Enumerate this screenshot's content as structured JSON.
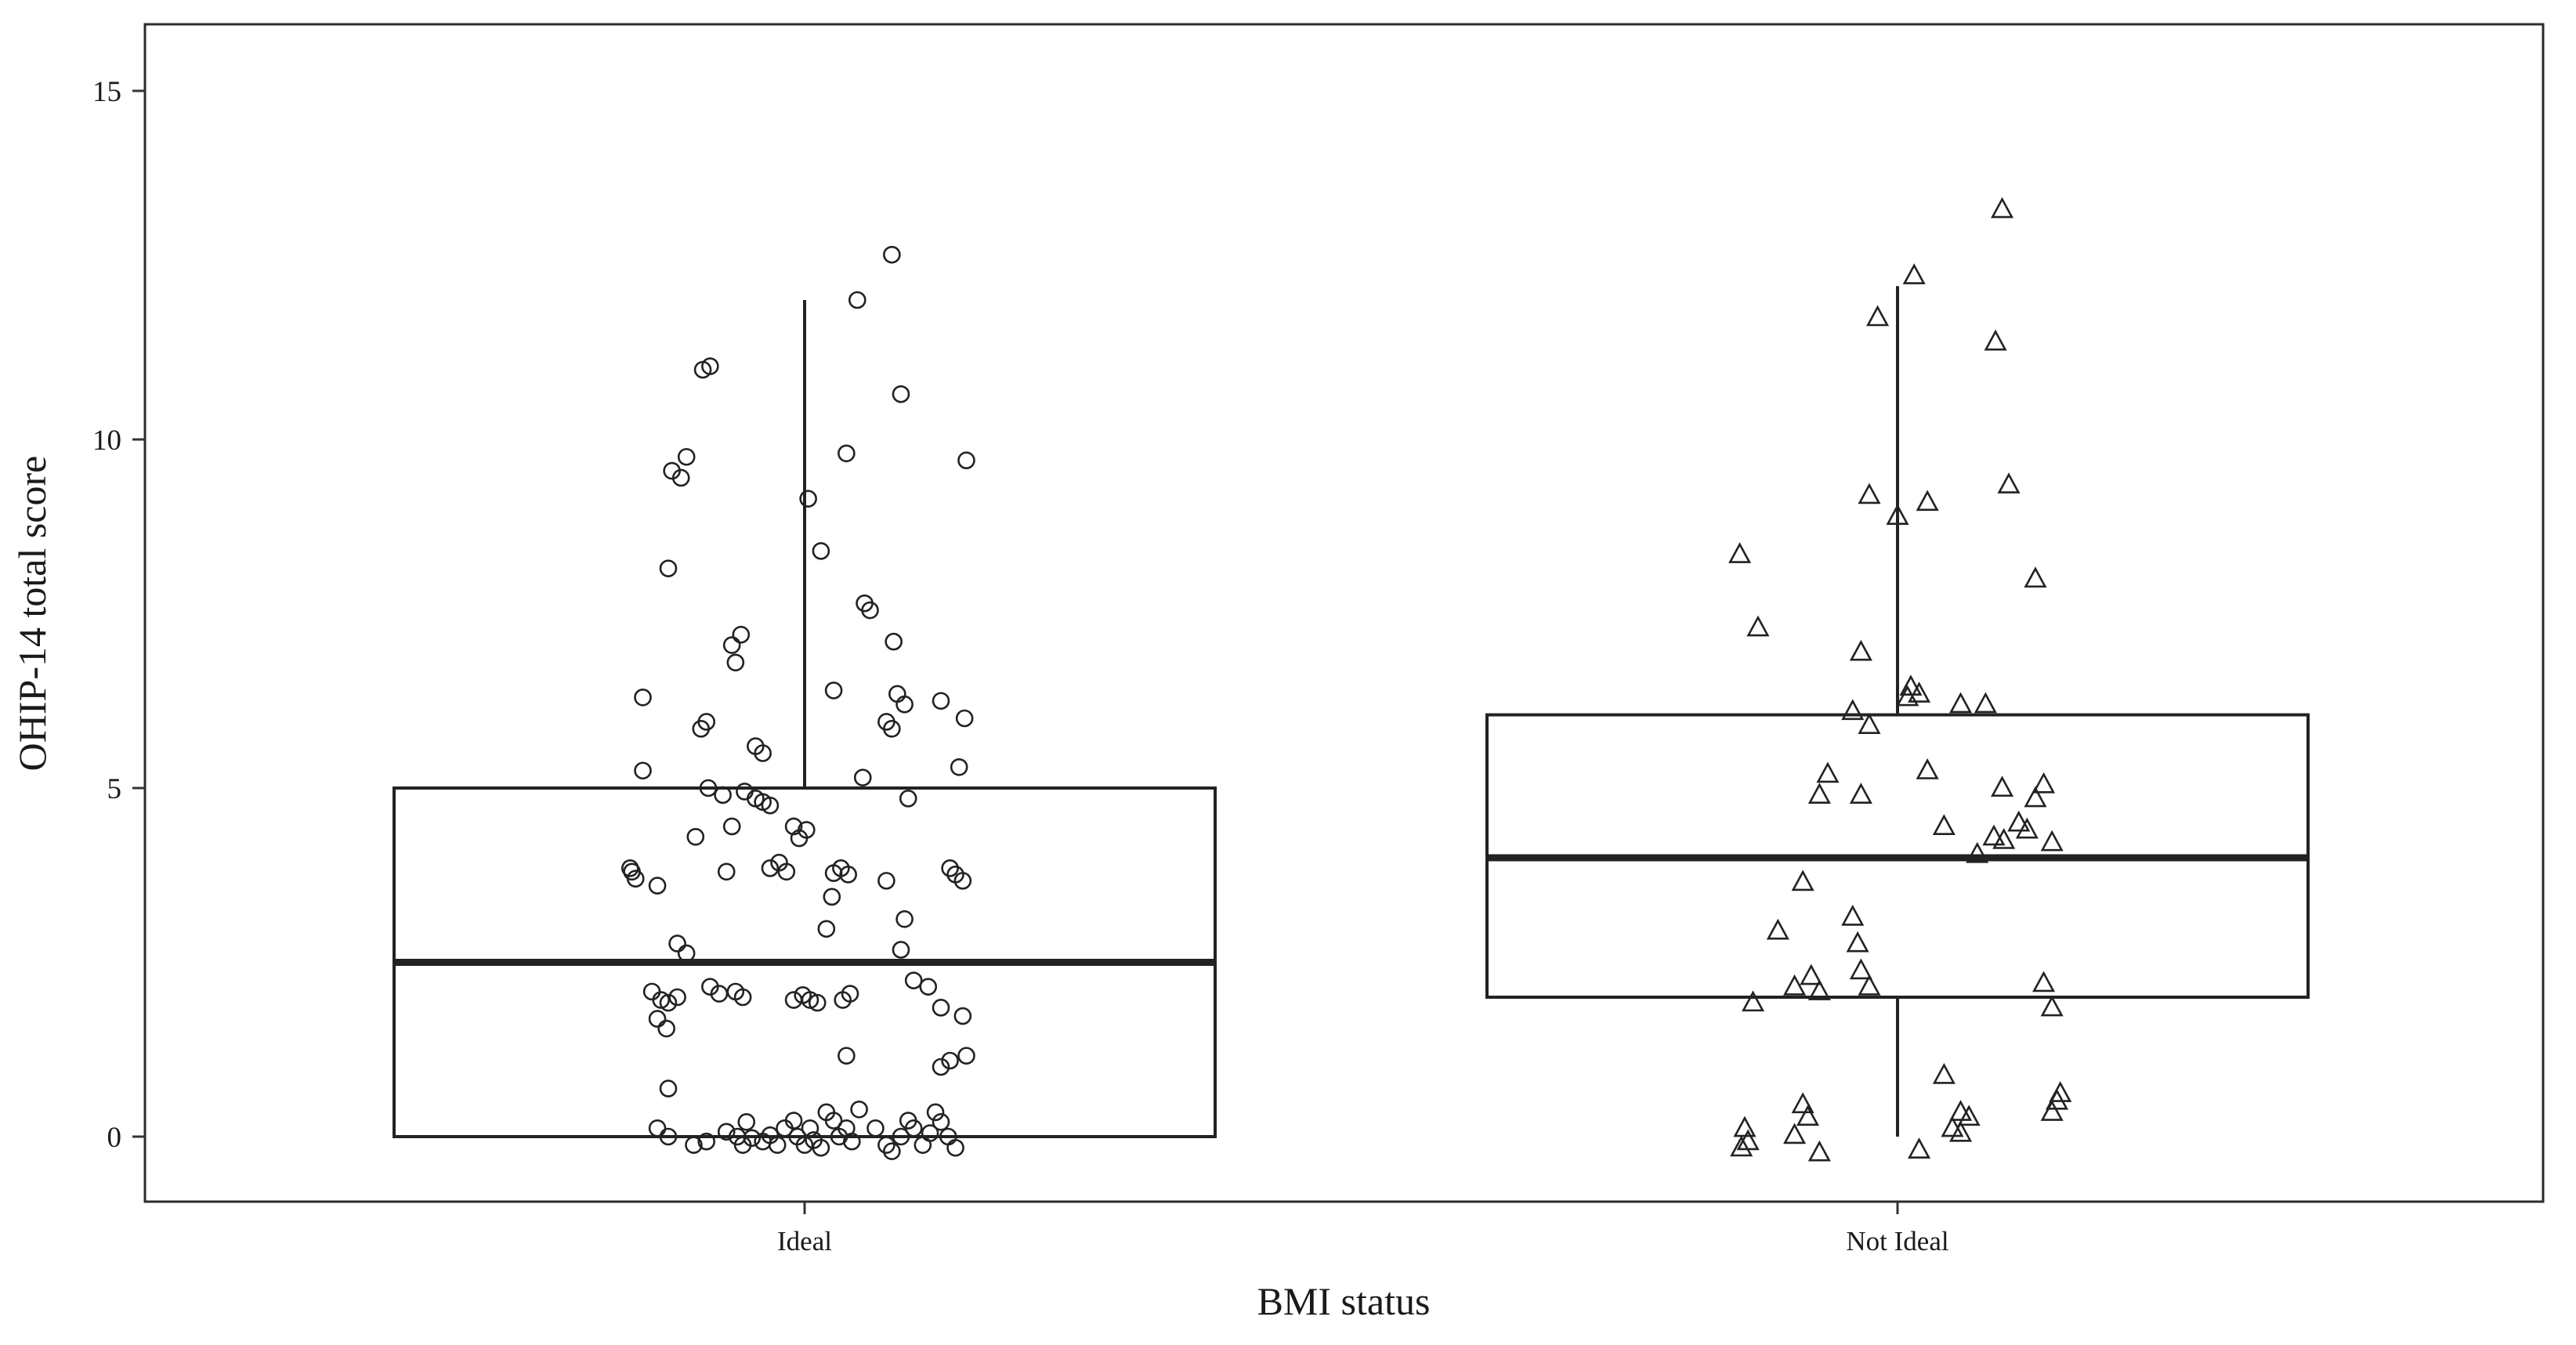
{
  "figure": {
    "background": "#ffffff"
  },
  "chart_data": {
    "type": "boxplot",
    "title": "",
    "xlabel": "BMI status",
    "ylabel": "OHIP-14 total score",
    "ylim": [
      -1,
      16
    ],
    "yticks": [
      0,
      5,
      10,
      15
    ],
    "categories": [
      "Ideal",
      "Not Ideal"
    ],
    "grid": false,
    "legend": "none",
    "colors": {
      "stroke": "#222222",
      "panel_border": "#2b2b2b",
      "background": "#ffffff"
    },
    "boxes": [
      {
        "category": "Ideal",
        "marker": "circle",
        "q1": 0,
        "median": 2.5,
        "q3": 5,
        "whisker_low": 0,
        "whisker_high": 12
      },
      {
        "category": "Not Ideal",
        "marker": "triangle",
        "q1": 2,
        "median": 4,
        "q3": 6.05,
        "whisker_low": 0,
        "whisker_high": 12.2
      }
    ],
    "points": {
      "Ideal": [
        [
          0.48,
          12.65
        ],
        [
          0.29,
          12.0
        ],
        [
          -0.52,
          11.05
        ],
        [
          -0.56,
          11.0
        ],
        [
          0.53,
          10.65
        ],
        [
          0.23,
          9.8
        ],
        [
          -0.65,
          9.75
        ],
        [
          0.89,
          9.7
        ],
        [
          -0.73,
          9.55
        ],
        [
          -0.68,
          9.45
        ],
        [
          0.02,
          9.15
        ],
        [
          0.09,
          8.4
        ],
        [
          -0.75,
          8.15
        ],
        [
          0.33,
          7.65
        ],
        [
          0.36,
          7.55
        ],
        [
          -0.35,
          7.2
        ],
        [
          0.49,
          7.1
        ],
        [
          -0.4,
          7.05
        ],
        [
          -0.38,
          6.8
        ],
        [
          0.16,
          6.4
        ],
        [
          0.51,
          6.35
        ],
        [
          -0.89,
          6.3
        ],
        [
          0.75,
          6.25
        ],
        [
          0.55,
          6.2
        ],
        [
          0.88,
          6.0
        ],
        [
          0.45,
          5.95
        ],
        [
          -0.54,
          5.95
        ],
        [
          0.48,
          5.85
        ],
        [
          -0.57,
          5.85
        ],
        [
          -0.27,
          5.6
        ],
        [
          -0.23,
          5.5
        ],
        [
          0.85,
          5.3
        ],
        [
          -0.89,
          5.25
        ],
        [
          0.32,
          5.15
        ],
        [
          -0.53,
          5.0
        ],
        [
          -0.33,
          4.95
        ],
        [
          -0.45,
          4.9
        ],
        [
          0.57,
          4.85
        ],
        [
          -0.27,
          4.85
        ],
        [
          -0.23,
          4.8
        ],
        [
          -0.19,
          4.75
        ],
        [
          -0.4,
          4.45
        ],
        [
          -0.06,
          4.45
        ],
        [
          0.01,
          4.4
        ],
        [
          -0.6,
          4.3
        ],
        [
          -0.03,
          4.28
        ],
        [
          -0.96,
          3.85
        ],
        [
          -0.19,
          3.85
        ],
        [
          0.8,
          3.85
        ],
        [
          -0.95,
          3.8
        ],
        [
          -0.43,
          3.8
        ],
        [
          -0.1,
          3.8
        ],
        [
          0.2,
          3.85
        ],
        [
          0.16,
          3.78
        ],
        [
          0.24,
          3.76
        ],
        [
          0.83,
          3.76
        ],
        [
          -0.93,
          3.7
        ],
        [
          0.45,
          3.67
        ],
        [
          0.87,
          3.67
        ],
        [
          -0.81,
          3.6
        ],
        [
          -0.14,
          3.93
        ],
        [
          0.15,
          3.44
        ],
        [
          0.55,
          3.12
        ],
        [
          0.12,
          2.98
        ],
        [
          -0.7,
          2.77
        ],
        [
          0.53,
          2.68
        ],
        [
          -0.65,
          2.63
        ],
        [
          -0.84,
          2.08
        ],
        [
          -0.52,
          2.15
        ],
        [
          0.25,
          2.05
        ],
        [
          -0.47,
          2.05
        ],
        [
          -0.38,
          2.08
        ],
        [
          0.6,
          2.24
        ],
        [
          0.68,
          2.15
        ],
        [
          -0.79,
          1.96
        ],
        [
          -0.7,
          2.0
        ],
        [
          -0.75,
          1.92
        ],
        [
          -0.34,
          2.0
        ],
        [
          -0.06,
          1.96
        ],
        [
          -0.01,
          2.03
        ],
        [
          0.03,
          1.96
        ],
        [
          0.07,
          1.92
        ],
        [
          0.21,
          1.96
        ],
        [
          0.75,
          1.85
        ],
        [
          0.87,
          1.73
        ],
        [
          -0.81,
          1.69
        ],
        [
          -0.76,
          1.55
        ],
        [
          0.23,
          1.16
        ],
        [
          0.89,
          1.16
        ],
        [
          0.8,
          1.09
        ],
        [
          0.75,
          1.0
        ],
        [
          -0.75,
          0.69
        ],
        [
          0.3,
          0.39
        ],
        [
          0.12,
          0.35
        ],
        [
          0.72,
          0.35
        ],
        [
          -0.06,
          0.23
        ],
        [
          0.16,
          0.23
        ],
        [
          0.57,
          0.23
        ],
        [
          -0.32,
          0.21
        ],
        [
          0.75,
          0.21
        ],
        [
          -0.81,
          0.12
        ],
        [
          -0.11,
          0.12
        ],
        [
          0.03,
          0.12
        ],
        [
          0.23,
          0.12
        ],
        [
          0.39,
          0.12
        ],
        [
          0.6,
          0.12
        ],
        [
          -0.43,
          0.07
        ],
        [
          -0.19,
          0.02
        ],
        [
          0.69,
          0.05
        ],
        [
          -0.75,
          0.0
        ],
        [
          -0.37,
          0.0
        ],
        [
          -0.04,
          0.0
        ],
        [
          0.19,
          0.0
        ],
        [
          0.53,
          0.0
        ],
        [
          0.79,
          0.0
        ],
        [
          -0.29,
          -0.02
        ],
        [
          0.05,
          -0.05
        ],
        [
          -0.54,
          -0.07
        ],
        [
          -0.23,
          -0.07
        ],
        [
          0.26,
          -0.07
        ],
        [
          -0.61,
          -0.12
        ],
        [
          -0.34,
          -0.12
        ],
        [
          0.0,
          -0.12
        ],
        [
          -0.15,
          -0.12
        ],
        [
          0.45,
          -0.12
        ],
        [
          0.65,
          -0.12
        ],
        [
          0.09,
          -0.16
        ],
        [
          0.83,
          -0.16
        ],
        [
          0.48,
          -0.21
        ]
      ],
      "Not Ideal": [
        [
          0.63,
          13.3
        ],
        [
          0.1,
          12.35
        ],
        [
          -0.12,
          11.75
        ],
        [
          0.59,
          11.4
        ],
        [
          0.67,
          9.35
        ],
        [
          -0.17,
          9.2
        ],
        [
          0.18,
          9.1
        ],
        [
          0.0,
          8.9
        ],
        [
          -0.95,
          8.35
        ],
        [
          0.83,
          8.0
        ],
        [
          -0.84,
          7.3
        ],
        [
          -0.22,
          6.95
        ],
        [
          0.08,
          6.45
        ],
        [
          0.13,
          6.35
        ],
        [
          0.06,
          6.3
        ],
        [
          0.38,
          6.2
        ],
        [
          0.53,
          6.2
        ],
        [
          -0.27,
          6.1
        ],
        [
          -0.17,
          5.9
        ],
        [
          0.18,
          5.25
        ],
        [
          -0.42,
          5.2
        ],
        [
          0.88,
          5.05
        ],
        [
          0.63,
          5.0
        ],
        [
          -0.47,
          4.9
        ],
        [
          -0.22,
          4.9
        ],
        [
          0.83,
          4.85
        ],
        [
          0.28,
          4.45
        ],
        [
          0.73,
          4.5
        ],
        [
          0.78,
          4.4
        ],
        [
          0.58,
          4.3
        ],
        [
          0.64,
          4.25
        ],
        [
          0.93,
          4.22
        ],
        [
          0.48,
          4.05
        ],
        [
          -0.57,
          3.65
        ],
        [
          -0.27,
          3.15
        ],
        [
          -0.72,
          2.95
        ],
        [
          -0.24,
          2.77
        ],
        [
          -0.52,
          2.3
        ],
        [
          -0.22,
          2.38
        ],
        [
          -0.62,
          2.15
        ],
        [
          -0.47,
          2.08
        ],
        [
          -0.17,
          2.15
        ],
        [
          0.88,
          2.2
        ],
        [
          -0.87,
          1.92
        ],
        [
          0.93,
          1.85
        ],
        [
          0.28,
          0.88
        ],
        [
          0.98,
          0.62
        ],
        [
          0.96,
          0.51
        ],
        [
          -0.57,
          0.46
        ],
        [
          0.93,
          0.35
        ],
        [
          0.38,
          0.35
        ],
        [
          0.43,
          0.28
        ],
        [
          -0.54,
          0.28
        ],
        [
          0.33,
          0.12
        ],
        [
          0.38,
          0.05
        ],
        [
          -0.92,
          0.12
        ],
        [
          -0.62,
          0.02
        ],
        [
          -0.94,
          -0.16
        ],
        [
          -0.9,
          -0.07
        ],
        [
          -0.47,
          -0.23
        ],
        [
          0.13,
          -0.19
        ]
      ]
    }
  }
}
